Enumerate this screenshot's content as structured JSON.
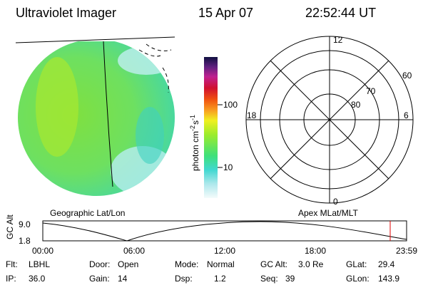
{
  "header": {
    "title": "Ultraviolet Imager",
    "date": "15 Apr 07",
    "time": "22:52:44 UT"
  },
  "colorbar": {
    "label": [
      "photon cm",
      "-2",
      "s",
      "-1"
    ],
    "ticks": [
      "100",
      "10"
    ]
  },
  "polar": {
    "mlt_labels": [
      "12",
      "18",
      "6",
      "0"
    ],
    "lat_labels": [
      "60",
      "70",
      "80"
    ]
  },
  "panel_labels": [
    "Geographic Lat/Lon",
    "Apex MLat/MLT"
  ],
  "altitude_plot": {
    "ylabel": "GC Alt",
    "yticks": [
      "9.0",
      "1.8"
    ],
    "xticks": [
      "00:00",
      "06:00",
      "12:00",
      "18:00",
      "23:59"
    ]
  },
  "status": [
    [
      {
        "label": "Flt:",
        "value": "LBHL"
      },
      {
        "label": "Door:",
        "value": "Open"
      },
      {
        "label": "Mode:",
        "value": "Normal"
      },
      {
        "label": "GC Alt:",
        "value": "3.0 Re"
      },
      {
        "label": "GLat:",
        "value": "29.4"
      }
    ],
    [
      {
        "label": "IP:",
        "value": "36.0"
      },
      {
        "label": "Gain:",
        "value": "14"
      },
      {
        "label": "Dsp:",
        "value": "1.2"
      },
      {
        "label": "Seq:",
        "value": "39"
      },
      {
        "label": "GLon:",
        "value": "143.9"
      }
    ]
  ]
}
